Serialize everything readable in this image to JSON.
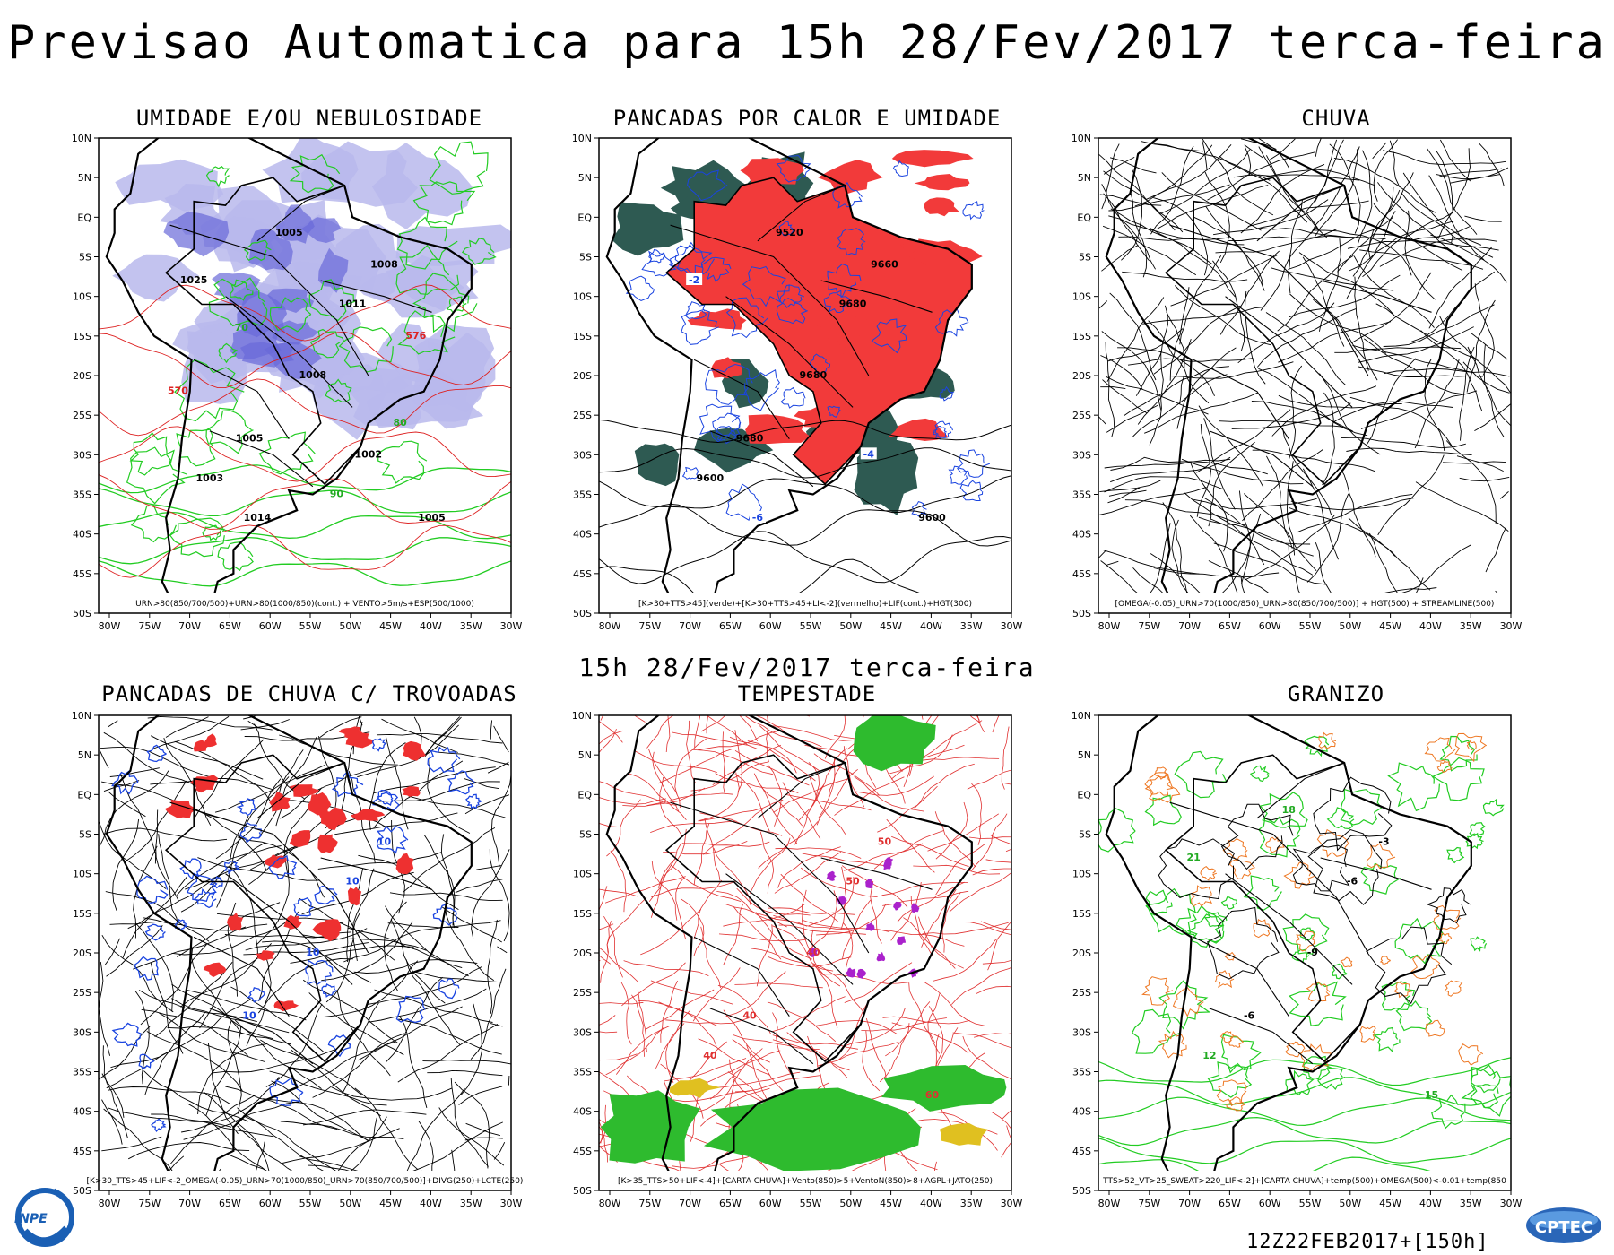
{
  "title": "Previsao Automatica  para 15h 28/Fev/2017 terca-feira",
  "subtitle": "15h 28/Fev/2017 terca-feira",
  "stamp": "12Z22FEB2017+[150h]",
  "logos": {
    "left": "INPE",
    "right": "CPTEC"
  },
  "axes": {
    "lat_labels": [
      "10N",
      "5N",
      "EQ",
      "5S",
      "10S",
      "15S",
      "20S",
      "25S",
      "30S",
      "35S",
      "40S",
      "45S",
      "50S"
    ],
    "lon_labels": [
      "80W",
      "75W",
      "70W",
      "65W",
      "60W",
      "55W",
      "50W",
      "45W",
      "40W",
      "35W",
      "30W"
    ]
  },
  "panels": [
    {
      "title": "UMIDADE E/OU NEBULOSIDADE",
      "legend": "URN>80(850/700/500)+URN>80(1000/850)(cont.) + VENTO>5m/s+ESP(500/1000)",
      "labels": [
        "1011",
        "1005",
        "1008",
        "1008",
        "1003",
        "1005",
        "1005",
        "1025",
        "1002",
        "1014",
        "576",
        "570",
        "90",
        "70",
        "80"
      ],
      "colors": {
        "fill": "#b8b8ec",
        "dark": "#6a6ad8",
        "green": "#22cc22",
        "red": "#dd2222"
      }
    },
    {
      "title": "PANCADAS POR CALOR E UMIDADE",
      "legend": "[K>30+TTS>45](verde)+[K>30+TTS>45+LI<-2](vermelho)+LIF(cont.)+HGT(300)",
      "labels": [
        "9680",
        "9680",
        "9680",
        "9660",
        "9600",
        "9600",
        "9520",
        "-2",
        "-4",
        "-6"
      ],
      "colors": {
        "red": "#f23a3a",
        "dark": "#2e5a52",
        "blue": "#1a44e0"
      }
    },
    {
      "title": "CHUVA",
      "legend": "[OMEGA(-0.05)_URN>70(1000/850)_URN>80(850/700/500)] + HGT(500) + STREAMLINE(500)",
      "labels": [],
      "colors": {
        "lines": "#000000"
      }
    },
    {
      "title": "PANCADAS DE CHUVA C/ TROVOADAS",
      "legend": "[K>30_TTS>45+LIF<-2_OMEGA(-0.05)_URN>70(1000/850)_URN>70(850/700/500)]+DIVG(250)+LCTE(250)",
      "labels": [
        "10",
        "10",
        "10",
        "10"
      ],
      "colors": {
        "red": "#ee3030",
        "blue": "#1a44e0"
      }
    },
    {
      "title": "TEMPESTADE",
      "legend": "[K>35_TTS>50+LIF<-4]+[CARTA CHUVA]+Vento(850)>5+VentoN(850)>8+AGPL+JATO(250)",
      "labels": [
        "50",
        "40",
        "40",
        "50",
        "40",
        "60"
      ],
      "colors": {
        "red": "#e03030",
        "green": "#2ebb2e",
        "yellow": "#e0c020",
        "purple": "#aa22cc"
      }
    },
    {
      "title": "GRANIZO",
      "legend": "TTS>52_VT>25_SWEAT>220_LIF<-2]+[CARTA CHUVA]+temp(500)+OMEGA(500)<-0.01+temp(850",
      "labels": [
        "-6",
        "-6",
        "-9",
        "-3",
        "12",
        "15",
        "18",
        "21"
      ],
      "colors": {
        "green": "#22cc22",
        "orange": "#ee7722",
        "black": "#000000"
      }
    }
  ]
}
